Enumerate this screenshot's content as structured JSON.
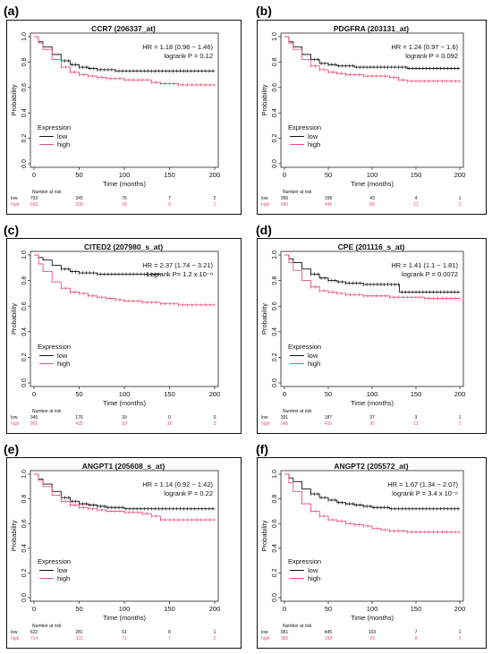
{
  "figure": {
    "panels": [
      {
        "letter": "(a)"
      },
      {
        "letter": "(b)"
      },
      {
        "letter": "(c)"
      },
      {
        "letter": "(d)"
      },
      {
        "letter": "(e)"
      },
      {
        "letter": "(f)"
      }
    ]
  },
  "colors": {
    "low": "#111111",
    "high": "#e8527a"
  },
  "chart_data": [
    {
      "type": "line",
      "title": "CCR7 (206337_at)",
      "hr_text": "HR = 1.18 (0.96 − 1.46)",
      "p_text": "logrank P = 0.12",
      "xlabel": "Time (months)",
      "ylabel": "Probability",
      "xlim": [
        0,
        200
      ],
      "ylim": [
        0,
        1
      ],
      "xticks": [
        0,
        50,
        100,
        150,
        200
      ],
      "yticks": [
        0.0,
        0.2,
        0.4,
        0.6,
        0.8,
        1.0
      ],
      "legend_title": "Expression",
      "series": [
        {
          "name": "low",
          "x": [
            0,
            5,
            10,
            20,
            30,
            40,
            50,
            60,
            70,
            80,
            90,
            100,
            120,
            140,
            160,
            180,
            200
          ],
          "y": [
            1.0,
            0.96,
            0.92,
            0.86,
            0.81,
            0.78,
            0.76,
            0.75,
            0.74,
            0.74,
            0.73,
            0.73,
            0.73,
            0.73,
            0.73,
            0.73,
            0.73
          ]
        },
        {
          "name": "high",
          "x": [
            0,
            5,
            10,
            20,
            30,
            40,
            50,
            60,
            70,
            80,
            90,
            100,
            120,
            130,
            140,
            160,
            180,
            200
          ],
          "y": [
            1.0,
            0.95,
            0.9,
            0.82,
            0.76,
            0.72,
            0.7,
            0.69,
            0.68,
            0.67,
            0.67,
            0.66,
            0.66,
            0.64,
            0.63,
            0.62,
            0.62,
            0.62
          ]
        }
      ],
      "risk_title": "Number at risk",
      "risk_rows": [
        {
          "label": "low",
          "values": [
            "793",
            "345",
            "76",
            "7",
            "2"
          ]
        },
        {
          "label": "high",
          "values": [
            "543",
            "258",
            "58",
            "8",
            "1"
          ]
        }
      ]
    },
    {
      "type": "line",
      "title": "PDGFRA (203131_at)",
      "hr_text": "HR = 1.24 (0.97 − 1.6)",
      "p_text": "logrank P = 0.092",
      "xlabel": "Time (months)",
      "ylabel": "Probability",
      "xlim": [
        0,
        200
      ],
      "ylim": [
        0,
        1
      ],
      "xticks": [
        0,
        50,
        100,
        150,
        200
      ],
      "yticks": [
        0.0,
        0.2,
        0.4,
        0.6,
        0.8,
        1.0
      ],
      "legend_title": "Expression",
      "series": [
        {
          "name": "low",
          "x": [
            0,
            5,
            10,
            20,
            30,
            40,
            50,
            60,
            70,
            80,
            90,
            100,
            120,
            140,
            160,
            180,
            200
          ],
          "y": [
            1.0,
            0.96,
            0.92,
            0.86,
            0.82,
            0.79,
            0.78,
            0.77,
            0.77,
            0.76,
            0.76,
            0.76,
            0.76,
            0.75,
            0.75,
            0.75,
            0.75
          ]
        },
        {
          "name": "high",
          "x": [
            0,
            5,
            10,
            20,
            30,
            40,
            50,
            60,
            70,
            80,
            90,
            100,
            120,
            130,
            140,
            160,
            180,
            200
          ],
          "y": [
            1.0,
            0.95,
            0.9,
            0.82,
            0.77,
            0.74,
            0.72,
            0.71,
            0.7,
            0.7,
            0.69,
            0.69,
            0.68,
            0.66,
            0.65,
            0.65,
            0.65,
            0.65
          ]
        }
      ],
      "risk_title": "Number at risk",
      "risk_rows": [
        {
          "label": "low",
          "values": [
            "356",
            "158",
            "43",
            "4",
            "1"
          ]
        },
        {
          "label": "high",
          "values": [
            "980",
            "445",
            "89",
            "11",
            "2"
          ]
        }
      ]
    },
    {
      "type": "line",
      "title": "CITED2 (207980_s_at)",
      "hr_text": "HR = 2.37 (1.74 − 3.21)",
      "p_text": "Logrank P= 1.2 x 10⁻⁸",
      "xlabel": "Time (months)",
      "ylabel": "Probability",
      "xlim": [
        0,
        200
      ],
      "ylim": [
        0,
        1
      ],
      "xticks": [
        0,
        50,
        100,
        150,
        200
      ],
      "yticks": [
        0.0,
        0.2,
        0.4,
        0.6,
        0.8,
        1.0
      ],
      "legend_title": "Expression",
      "series": [
        {
          "name": "low",
          "x": [
            0,
            5,
            10,
            20,
            30,
            40,
            50,
            60,
            70,
            80,
            90,
            100,
            110,
            120,
            140
          ],
          "y": [
            1.0,
            0.98,
            0.96,
            0.92,
            0.89,
            0.87,
            0.86,
            0.86,
            0.85,
            0.85,
            0.85,
            0.85,
            0.85,
            0.85,
            0.85
          ]
        },
        {
          "name": "high",
          "x": [
            0,
            5,
            10,
            20,
            30,
            40,
            50,
            60,
            70,
            80,
            90,
            100,
            120,
            140,
            160,
            180,
            200
          ],
          "y": [
            1.0,
            0.93,
            0.87,
            0.79,
            0.74,
            0.71,
            0.7,
            0.68,
            0.67,
            0.66,
            0.65,
            0.64,
            0.63,
            0.62,
            0.61,
            0.61,
            0.61
          ]
        }
      ],
      "risk_title": "Number at risk",
      "risk_rows": [
        {
          "label": "low",
          "values": [
            "345",
            "176",
            "39",
            "0",
            "0"
          ]
        },
        {
          "label": "high",
          "values": [
            "991",
            "425",
            "93",
            "15",
            "3"
          ]
        }
      ]
    },
    {
      "type": "line",
      "title": "CPE (201116_s_at)",
      "hr_text": "HR = 1.41 (1.1 − 1.81)",
      "p_text": "logrank P = 0.0072",
      "xlabel": "Time (months)",
      "ylabel": "Probability",
      "xlim": [
        0,
        200
      ],
      "ylim": [
        0,
        1
      ],
      "xticks": [
        0,
        50,
        100,
        150,
        200
      ],
      "yticks": [
        0.0,
        0.2,
        0.4,
        0.6,
        0.8,
        1.0
      ],
      "legend_title": "Expression",
      "series": [
        {
          "name": "low",
          "x": [
            0,
            5,
            10,
            20,
            30,
            40,
            50,
            60,
            70,
            80,
            90,
            100,
            110,
            120,
            130,
            131,
            140,
            160,
            180,
            200
          ],
          "y": [
            1.0,
            0.97,
            0.94,
            0.89,
            0.85,
            0.82,
            0.8,
            0.79,
            0.78,
            0.78,
            0.77,
            0.77,
            0.77,
            0.77,
            0.77,
            0.71,
            0.71,
            0.71,
            0.71,
            0.71
          ]
        },
        {
          "name": "high",
          "x": [
            0,
            5,
            10,
            20,
            30,
            40,
            50,
            60,
            70,
            80,
            90,
            100,
            120,
            140,
            160,
            180,
            200
          ],
          "y": [
            1.0,
            0.94,
            0.88,
            0.8,
            0.75,
            0.72,
            0.71,
            0.7,
            0.69,
            0.69,
            0.68,
            0.68,
            0.67,
            0.67,
            0.66,
            0.66,
            0.66
          ]
        }
      ],
      "risk_title": "Number at risk",
      "risk_rows": [
        {
          "label": "low",
          "values": [
            "391",
            "187",
            "37",
            "3",
            "1"
          ]
        },
        {
          "label": "high",
          "values": [
            "945",
            "416",
            "95",
            "12",
            "2"
          ]
        }
      ]
    },
    {
      "type": "line",
      "title": "ANGPT1 (205608_s_at)",
      "hr_text": "HR = 1.14 (0.92 − 1.42)",
      "p_text": "logrank P = 0.22",
      "xlabel": "Time (months)",
      "ylabel": "Probability",
      "xlim": [
        0,
        200
      ],
      "ylim": [
        0,
        1
      ],
      "xticks": [
        0,
        50,
        100,
        150,
        200
      ],
      "yticks": [
        0.0,
        0.2,
        0.4,
        0.6,
        0.8,
        1.0
      ],
      "legend_title": "Expression",
      "series": [
        {
          "name": "low",
          "x": [
            0,
            5,
            10,
            20,
            30,
            40,
            50,
            60,
            70,
            80,
            90,
            100,
            120,
            140,
            160,
            180,
            200
          ],
          "y": [
            1.0,
            0.96,
            0.92,
            0.86,
            0.81,
            0.78,
            0.76,
            0.75,
            0.74,
            0.73,
            0.73,
            0.72,
            0.72,
            0.72,
            0.72,
            0.72,
            0.72
          ]
        },
        {
          "name": "high",
          "x": [
            0,
            5,
            10,
            20,
            30,
            40,
            50,
            60,
            70,
            80,
            90,
            100,
            120,
            130,
            140,
            160,
            180,
            200
          ],
          "y": [
            1.0,
            0.95,
            0.9,
            0.83,
            0.78,
            0.75,
            0.73,
            0.72,
            0.71,
            0.7,
            0.7,
            0.69,
            0.68,
            0.66,
            0.63,
            0.63,
            0.63,
            0.63
          ]
        }
      ],
      "risk_title": "Number at risk",
      "risk_rows": [
        {
          "label": "low",
          "values": [
            "622",
            "281",
            "61",
            "8",
            "1"
          ]
        },
        {
          "label": "high",
          "values": [
            "714",
            "322",
            "71",
            "7",
            "2"
          ]
        }
      ]
    },
    {
      "type": "line",
      "title": "ANGPT2 (205572_at)",
      "hr_text": "HR = 1.67 (1.34 − 2.07)",
      "p_text": "logrank P = 3.4 x 10⁻⁶",
      "xlabel": "Time (months)",
      "ylabel": "Probability",
      "xlim": [
        0,
        200
      ],
      "ylim": [
        0,
        1
      ],
      "xticks": [
        0,
        50,
        100,
        150,
        200
      ],
      "yticks": [
        0.0,
        0.2,
        0.4,
        0.6,
        0.8,
        1.0
      ],
      "legend_title": "Expression",
      "series": [
        {
          "name": "low",
          "x": [
            0,
            5,
            10,
            20,
            30,
            40,
            50,
            60,
            70,
            80,
            90,
            100,
            120,
            140,
            160,
            180,
            200
          ],
          "y": [
            1.0,
            0.97,
            0.94,
            0.88,
            0.84,
            0.81,
            0.79,
            0.77,
            0.76,
            0.75,
            0.74,
            0.73,
            0.72,
            0.72,
            0.72,
            0.72,
            0.72
          ]
        },
        {
          "name": "high",
          "x": [
            0,
            5,
            10,
            20,
            30,
            40,
            50,
            60,
            70,
            80,
            90,
            100,
            110,
            120,
            140,
            160,
            180,
            200
          ],
          "y": [
            1.0,
            0.93,
            0.86,
            0.76,
            0.7,
            0.66,
            0.63,
            0.62,
            0.6,
            0.59,
            0.58,
            0.56,
            0.55,
            0.54,
            0.53,
            0.53,
            0.53,
            0.53
          ]
        }
      ],
      "risk_title": "Number at risk",
      "risk_rows": [
        {
          "label": "low",
          "values": [
            "951",
            "445",
            "103",
            "7",
            "1"
          ]
        },
        {
          "label": "high",
          "values": [
            "385",
            "158",
            "29",
            "8",
            "2"
          ]
        }
      ]
    }
  ]
}
